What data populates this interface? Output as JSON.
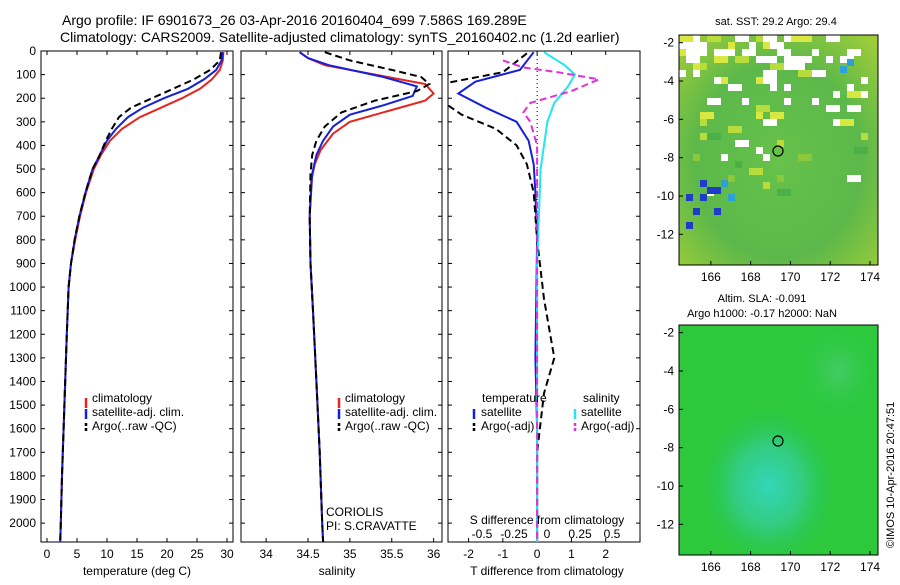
{
  "header": {
    "title_line1": "Argo profile: IF 6901673_26 03-Apr-2016 20160404_699 7.586S 169.289E",
    "title_line2": "Climatology: CARS2009. Satellite-adjusted climatology: synTS_20160402.nc (1.2d earlier)"
  },
  "colors": {
    "climatology": "#e8231c",
    "satellite": "#1520d8",
    "argo": "#000000",
    "satellite_salinity": "#22e6ef",
    "argo_salinity": "#e030d8"
  },
  "chart_data": [
    {
      "type": "line",
      "id": "temperature",
      "xlabel": "temperature (deg C)",
      "ylabel": "",
      "xlim": [
        -1,
        31
      ],
      "ylim": [
        0,
        2080
      ],
      "y_inverted": true,
      "xticks": [
        0,
        5,
        10,
        15,
        20,
        25,
        30
      ],
      "yticks": [
        0,
        100,
        200,
        300,
        400,
        500,
        600,
        700,
        800,
        900,
        1000,
        1100,
        1200,
        1300,
        1400,
        1500,
        1600,
        1700,
        1800,
        1900,
        2000
      ],
      "legend": [
        "climatology",
        "satellite-adj. clim.",
        "Argo(..raw -QC)"
      ],
      "legend_position": "lower-center",
      "series": [
        {
          "name": "climatology",
          "color": "#e8231c",
          "dash": "",
          "points": [
            [
              29.4,
              5
            ],
            [
              29.3,
              40
            ],
            [
              28.8,
              80
            ],
            [
              27.5,
              120
            ],
            [
              25.5,
              160
            ],
            [
              22.5,
              200
            ],
            [
              19,
              240
            ],
            [
              15.5,
              280
            ],
            [
              12.5,
              330
            ],
            [
              10.5,
              380
            ],
            [
              9,
              440
            ],
            [
              7.8,
              500
            ],
            [
              6.5,
              600
            ],
            [
              5.5,
              700
            ],
            [
              4.7,
              800
            ],
            [
              4.0,
              900
            ],
            [
              3.6,
              1000
            ],
            [
              3.3,
              1200
            ],
            [
              2.9,
              1500
            ],
            [
              2.5,
              1800
            ],
            [
              2.3,
              2000
            ],
            [
              2.2,
              2080
            ]
          ]
        },
        {
          "name": "satellite-adj. clim.",
          "color": "#1520d8",
          "dash": "",
          "points": [
            [
              29.3,
              5
            ],
            [
              29.1,
              40
            ],
            [
              28.2,
              80
            ],
            [
              26.2,
              120
            ],
            [
              23.5,
              160
            ],
            [
              19.5,
              200
            ],
            [
              16,
              240
            ],
            [
              13.5,
              280
            ],
            [
              11.5,
              330
            ],
            [
              10,
              380
            ],
            [
              8.8,
              440
            ],
            [
              7.6,
              500
            ],
            [
              6.4,
              600
            ],
            [
              5.4,
              700
            ],
            [
              4.6,
              800
            ],
            [
              4.0,
              900
            ],
            [
              3.6,
              1000
            ],
            [
              3.3,
              1200
            ],
            [
              2.9,
              1500
            ],
            [
              2.5,
              1800
            ],
            [
              2.3,
              2000
            ],
            [
              2.2,
              2080
            ]
          ]
        },
        {
          "name": "Argo(..raw -QC)",
          "color": "#000000",
          "dash": "7,4",
          "points": [
            [
              29.0,
              5
            ],
            [
              28.8,
              40
            ],
            [
              27.2,
              80
            ],
            [
              24.5,
              120
            ],
            [
              21,
              160
            ],
            [
              17.5,
              200
            ],
            [
              14,
              240
            ],
            [
              12,
              280
            ],
            [
              10.8,
              330
            ],
            [
              9.8,
              380
            ],
            [
              8.8,
              440
            ],
            [
              7.6,
              500
            ],
            [
              6.4,
              600
            ],
            [
              5.4,
              700
            ],
            [
              4.6,
              800
            ],
            [
              4.0,
              900
            ],
            [
              3.6,
              1000
            ],
            [
              3.3,
              1200
            ],
            [
              2.9,
              1500
            ],
            [
              2.5,
              1800
            ],
            [
              2.3,
              2000
            ],
            [
              2.2,
              2080
            ]
          ]
        }
      ]
    },
    {
      "type": "line",
      "id": "salinity",
      "xlabel": "salinity",
      "xlim": [
        33.7,
        36.1
      ],
      "ylim": [
        0,
        2080
      ],
      "y_inverted": true,
      "xticks": [
        34,
        34.5,
        35,
        35.5,
        36
      ],
      "legend": [
        "climatology",
        "satellite-adj. clim.",
        "Argo(..raw -QC)"
      ],
      "legend_position": "lower-right",
      "annotation_line1": "CORIOLIS",
      "annotation_line2": "PI: S.CRAVATTE",
      "series": [
        {
          "name": "climatology",
          "color": "#e8231c",
          "dash": "",
          "points": [
            [
              34.4,
              5
            ],
            [
              34.5,
              30
            ],
            [
              34.7,
              60
            ],
            [
              35.3,
              100
            ],
            [
              35.9,
              140
            ],
            [
              36.0,
              180
            ],
            [
              35.9,
              210
            ],
            [
              35.5,
              250
            ],
            [
              35.0,
              300
            ],
            [
              34.8,
              350
            ],
            [
              34.65,
              420
            ],
            [
              34.58,
              480
            ],
            [
              34.54,
              550
            ],
            [
              34.52,
              700
            ],
            [
              34.53,
              900
            ],
            [
              34.56,
              1100
            ],
            [
              34.6,
              1400
            ],
            [
              34.64,
              1700
            ],
            [
              34.67,
              2000
            ],
            [
              34.68,
              2080
            ]
          ]
        },
        {
          "name": "satellite-adj. clim.",
          "color": "#1520d8",
          "dash": "",
          "points": [
            [
              34.4,
              5
            ],
            [
              34.5,
              30
            ],
            [
              34.75,
              60
            ],
            [
              35.4,
              110
            ],
            [
              35.8,
              150
            ],
            [
              35.75,
              190
            ],
            [
              35.4,
              230
            ],
            [
              35.0,
              270
            ],
            [
              34.8,
              320
            ],
            [
              34.68,
              380
            ],
            [
              34.6,
              440
            ],
            [
              34.55,
              520
            ],
            [
              34.52,
              700
            ],
            [
              34.53,
              900
            ],
            [
              34.56,
              1100
            ],
            [
              34.6,
              1400
            ],
            [
              34.64,
              1700
            ],
            [
              34.67,
              2000
            ],
            [
              34.68,
              2080
            ]
          ]
        },
        {
          "name": "Argo(..raw -QC)",
          "color": "#000000",
          "dash": "7,4",
          "points": [
            [
              34.7,
              5
            ],
            [
              35.0,
              40
            ],
            [
              35.5,
              80
            ],
            [
              35.85,
              110
            ],
            [
              35.95,
              140
            ],
            [
              35.8,
              170
            ],
            [
              35.3,
              210
            ],
            [
              34.9,
              260
            ],
            [
              34.7,
              320
            ],
            [
              34.6,
              380
            ],
            [
              34.55,
              440
            ],
            [
              34.53,
              520
            ],
            [
              34.52,
              700
            ],
            [
              34.53,
              900
            ],
            [
              34.56,
              1100
            ],
            [
              34.6,
              1400
            ],
            [
              34.64,
              1700
            ],
            [
              34.67,
              2000
            ],
            [
              34.68,
              2080
            ]
          ]
        }
      ]
    },
    {
      "type": "line",
      "id": "differences",
      "xlabel": "T difference from climatology",
      "xlabel_top": "S difference from climatology",
      "xlim": [
        -2.6,
        3.0
      ],
      "ylim": [
        0,
        2080
      ],
      "y_inverted": true,
      "xticks": [
        -2,
        -1,
        0,
        1,
        2
      ],
      "sticks_labels": [
        "-0.5",
        "-0.25",
        "0",
        "0.25",
        "0.5"
      ],
      "legend_temperature_title": "temperature",
      "legend_salinity_title": "salinity",
      "legend": [
        "satellite",
        "Argo(-adj)",
        "satellite",
        "Argo(-adj)"
      ],
      "legend_position": "lower-center",
      "series": [
        {
          "name": "satellite",
          "color": "#1520d8",
          "dash": "",
          "points": [
            [
              -0.1,
              5
            ],
            [
              -0.5,
              80
            ],
            [
              -1.8,
              130
            ],
            [
              -2.3,
              180
            ],
            [
              -1.5,
              240
            ],
            [
              -0.6,
              300
            ],
            [
              -0.25,
              380
            ],
            [
              -0.1,
              480
            ],
            [
              -0.05,
              600
            ],
            [
              0,
              800
            ],
            [
              -0.05,
              1300
            ],
            [
              0,
              1600
            ],
            [
              0,
              2080
            ]
          ]
        },
        {
          "name": "Argo(-adj)",
          "color": "#000000",
          "dash": "7,4",
          "points": [
            [
              -0.3,
              10
            ],
            [
              -1.0,
              90
            ],
            [
              -2.8,
              140
            ],
            [
              -2.9,
              200
            ],
            [
              -2.2,
              270
            ],
            [
              -1.2,
              330
            ],
            [
              -0.6,
              400
            ],
            [
              -0.3,
              480
            ],
            [
              -0.1,
              600
            ],
            [
              0,
              800
            ],
            [
              0.2,
              1050
            ],
            [
              0.5,
              1300
            ],
            [
              0.2,
              1450
            ],
            [
              0,
              1700
            ],
            [
              0,
              2080
            ]
          ]
        },
        {
          "name": "satellite",
          "color": "#22e6ef",
          "dash": "",
          "points": [
            [
              0.2,
              5
            ],
            [
              0.8,
              60
            ],
            [
              1.1,
              100
            ],
            [
              0.9,
              150
            ],
            [
              0.5,
              220
            ],
            [
              0.3,
              300
            ],
            [
              0.2,
              400
            ],
            [
              0.1,
              500
            ],
            [
              0.05,
              700
            ],
            [
              0,
              900
            ],
            [
              0,
              2080
            ]
          ]
        },
        {
          "name": "Argo(-adj)",
          "color": "#e030d8",
          "dash": "7,4",
          "points": [
            [
              -1.0,
              40
            ],
            [
              -0.4,
              70
            ],
            [
              0.6,
              90
            ],
            [
              1.8,
              120
            ],
            [
              1.0,
              170
            ],
            [
              -0.2,
              220
            ],
            [
              -0.4,
              260
            ],
            [
              -0.2,
              300
            ],
            [
              0,
              400
            ],
            [
              0,
              2080
            ]
          ]
        }
      ]
    }
  ],
  "maps": {
    "top": {
      "title": "sat. SST: 29.2 Argo: 29.4",
      "xticks": [
        "166",
        "168",
        "170",
        "172",
        "174"
      ],
      "yticks": [
        "-2",
        "-4",
        "-6",
        "-8",
        "-10",
        "-12"
      ],
      "float_lon": 169.289,
      "float_lat": -7.586
    },
    "bottom": {
      "title_line1": "Altim. SLA: -0.091",
      "title_line2": "Argo h1000: -0.17 h2000: NaN",
      "xticks": [
        "166",
        "168",
        "170",
        "172",
        "174"
      ],
      "yticks": [
        "-2",
        "-4",
        "-6",
        "-8",
        "-10",
        "-12"
      ],
      "float_lon": 169.289,
      "float_lat": -7.586
    }
  },
  "footer": {
    "credit": "©IMOS 10-Apr-2016 20:47:51"
  }
}
